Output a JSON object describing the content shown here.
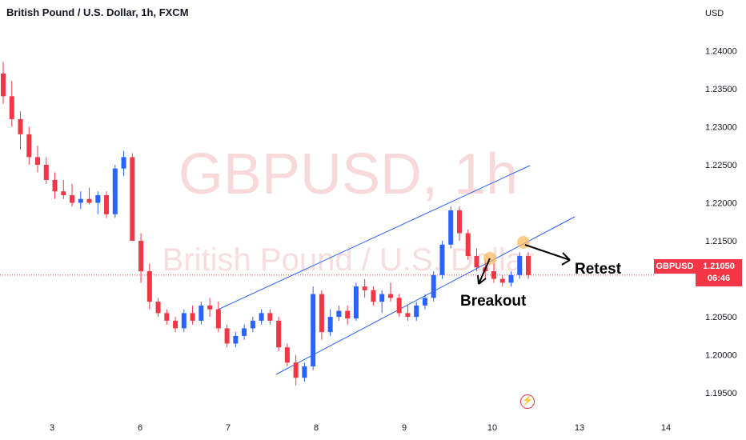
{
  "header": {
    "title": "British Pound / U.S. Dollar, 1h, FXCM"
  },
  "watermark": {
    "main": "GBPUSD, 1h",
    "sub": "British Pound / U.S. Dollar"
  },
  "price_axis": {
    "currency": "USD"
  },
  "price_tag": {
    "symbol": "GBPUSD",
    "price": "1.21050",
    "countdown": "06:46"
  },
  "annotations": {
    "breakout": "Breakout",
    "retest": "Retest"
  },
  "icons": {
    "alert": "lightning-icon"
  },
  "colors": {
    "up": "#2962ff",
    "down": "#f23645",
    "channel": "#2962ff",
    "marker": "#f7b958",
    "price_line": "#f23645"
  },
  "chart_data": {
    "type": "candlestick",
    "title": "British Pound / U.S. Dollar, 1h, FXCM",
    "ylabel": "USD",
    "ylim": [
      1.1925,
      1.2435
    ],
    "yticks": [
      "1.19500",
      "1.20000",
      "1.20500",
      "1.21000",
      "1.21500",
      "1.22000",
      "1.22500",
      "1.23000",
      "1.23500",
      "1.24000"
    ],
    "xticks": [
      "3",
      "6",
      "7",
      "8",
      "9",
      "10",
      "13",
      "14"
    ],
    "last_price": 1.2105,
    "ohlc": [
      [
        1.237,
        1.2385,
        1.233,
        1.234
      ],
      [
        1.234,
        1.236,
        1.23,
        1.231
      ],
      [
        1.231,
        1.232,
        1.227,
        1.229
      ],
      [
        1.229,
        1.23,
        1.225,
        1.226
      ],
      [
        1.226,
        1.2275,
        1.224,
        1.225
      ],
      [
        1.225,
        1.226,
        1.2225,
        1.223
      ],
      [
        1.223,
        1.224,
        1.2205,
        1.2215
      ],
      [
        1.2215,
        1.223,
        1.2205,
        1.221
      ],
      [
        1.221,
        1.2225,
        1.2195,
        1.22
      ],
      [
        1.22,
        1.2215,
        1.2192,
        1.2205
      ],
      [
        1.2205,
        1.222,
        1.2198,
        1.22
      ],
      [
        1.22,
        1.2215,
        1.2185,
        1.221
      ],
      [
        1.221,
        1.2215,
        1.218,
        1.2185
      ],
      [
        1.2185,
        1.225,
        1.218,
        1.2245
      ],
      [
        1.2245,
        1.2268,
        1.2235,
        1.226
      ],
      [
        1.226,
        1.2265,
        1.215,
        1.215
      ],
      [
        1.215,
        1.216,
        1.2095,
        1.211
      ],
      [
        1.211,
        1.212,
        1.206,
        1.207
      ],
      [
        1.207,
        1.2075,
        1.205,
        1.2055
      ],
      [
        1.2055,
        1.206,
        1.204,
        1.2045
      ],
      [
        1.2045,
        1.205,
        1.203,
        1.2035
      ],
      [
        1.2035,
        1.206,
        1.203,
        1.2055
      ],
      [
        1.2055,
        1.2065,
        1.204,
        1.2045
      ],
      [
        1.2045,
        1.207,
        1.204,
        1.2065
      ],
      [
        1.2065,
        1.2075,
        1.205,
        1.206
      ],
      [
        1.206,
        1.207,
        1.203,
        1.2035
      ],
      [
        1.2035,
        1.204,
        1.201,
        1.2015
      ],
      [
        1.2015,
        1.203,
        1.201,
        1.2025
      ],
      [
        1.2025,
        1.204,
        1.202,
        1.2035
      ],
      [
        1.2035,
        1.205,
        1.203,
        1.2045
      ],
      [
        1.2045,
        1.206,
        1.204,
        1.2055
      ],
      [
        1.2055,
        1.206,
        1.204,
        1.2045
      ],
      [
        1.2045,
        1.205,
        1.2005,
        1.201
      ],
      [
        1.201,
        1.2015,
        1.1985,
        1.199
      ],
      [
        1.199,
        1.2,
        1.196,
        1.197
      ],
      [
        1.197,
        1.199,
        1.1965,
        1.1985
      ],
      [
        1.1985,
        1.209,
        1.198,
        1.208
      ],
      [
        1.208,
        1.2085,
        1.202,
        1.203
      ],
      [
        1.203,
        1.206,
        1.2025,
        1.205
      ],
      [
        1.205,
        1.2065,
        1.2045,
        1.2058
      ],
      [
        1.2058,
        1.2065,
        1.204,
        1.2048
      ],
      [
        1.2048,
        1.2095,
        1.2045,
        1.209
      ],
      [
        1.209,
        1.21,
        1.2075,
        1.2085
      ],
      [
        1.2085,
        1.209,
        1.2065,
        1.207
      ],
      [
        1.207,
        1.2085,
        1.2055,
        1.208
      ],
      [
        1.208,
        1.2095,
        1.207,
        1.2075
      ],
      [
        1.2075,
        1.208,
        1.205,
        1.2055
      ],
      [
        1.2055,
        1.2065,
        1.2045,
        1.205
      ],
      [
        1.205,
        1.207,
        1.2045,
        1.2065
      ],
      [
        1.2065,
        1.208,
        1.206,
        1.2075
      ],
      [
        1.2075,
        1.211,
        1.207,
        1.2105
      ],
      [
        1.2105,
        1.215,
        1.21,
        1.2145
      ],
      [
        1.2145,
        1.2195,
        1.214,
        1.219
      ],
      [
        1.219,
        1.2195,
        1.215,
        1.216
      ],
      [
        1.216,
        1.2165,
        1.2125,
        1.213
      ],
      [
        1.213,
        1.214,
        1.211,
        1.2115
      ],
      [
        1.2115,
        1.2125,
        1.21,
        1.211
      ],
      [
        1.211,
        1.212,
        1.2095,
        1.21
      ],
      [
        1.21,
        1.2105,
        1.209,
        1.2095
      ],
      [
        1.2095,
        1.211,
        1.209,
        1.2105
      ],
      [
        1.2105,
        1.2135,
        1.21,
        1.213
      ],
      [
        1.213,
        1.2135,
        1.21,
        1.2105
      ]
    ],
    "series": [
      {
        "channel_upper": {
          "x": [
            "7",
            "9"
          ],
          "y": [
            1.2055,
            1.2195
          ]
        }
      },
      {
        "channel_lower": {
          "x": [
            "7.5",
            "10.5"
          ],
          "y": [
            1.1975,
            1.213
          ]
        }
      }
    ],
    "markers": [
      {
        "label": "Breakout",
        "price": 1.2115
      },
      {
        "label": "Retest",
        "price": 1.213
      }
    ]
  }
}
